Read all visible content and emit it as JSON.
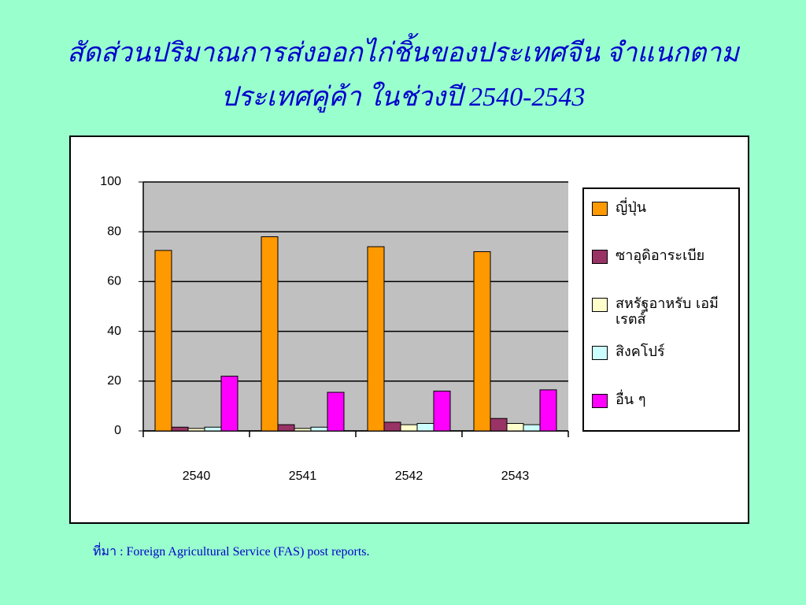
{
  "chart_data": {
    "type": "bar",
    "title": [
      "สัดส่วนปริมาณการส่งออกไก่ชิ้นของประเทศจีน จำแนกตาม",
      "ประเทศคู่ค้า ในช่วงปี 2540-2543"
    ],
    "categories": [
      "2540",
      "2541",
      "2542",
      "2543"
    ],
    "series": [
      {
        "name": "ญี่ปุ่น",
        "color": "#ff9900",
        "values": [
          72.5,
          78,
          74,
          72
        ]
      },
      {
        "name": "ซาอุดิอาระเบีย",
        "color": "#993366",
        "values": [
          1.5,
          2.5,
          3.5,
          5
        ]
      },
      {
        "name": "สหรัฐอาหรับ เอมีเรตส์",
        "color": "#ffffcc",
        "values": [
          1,
          1,
          2.5,
          3
        ]
      },
      {
        "name": "สิงคโปร์",
        "color": "#ccffff",
        "values": [
          1.5,
          1.5,
          3,
          2.5
        ]
      },
      {
        "name": "อื่น ๆ",
        "color": "#ff00ff",
        "values": [
          22,
          15.5,
          16,
          16.5
        ]
      }
    ],
    "ylim": [
      0,
      100
    ],
    "yticks": [
      0,
      20,
      40,
      60,
      80,
      100
    ],
    "grid": true,
    "legend": "right",
    "source": "ที่มา : Foreign Agricultural Service (FAS) post reports."
  }
}
